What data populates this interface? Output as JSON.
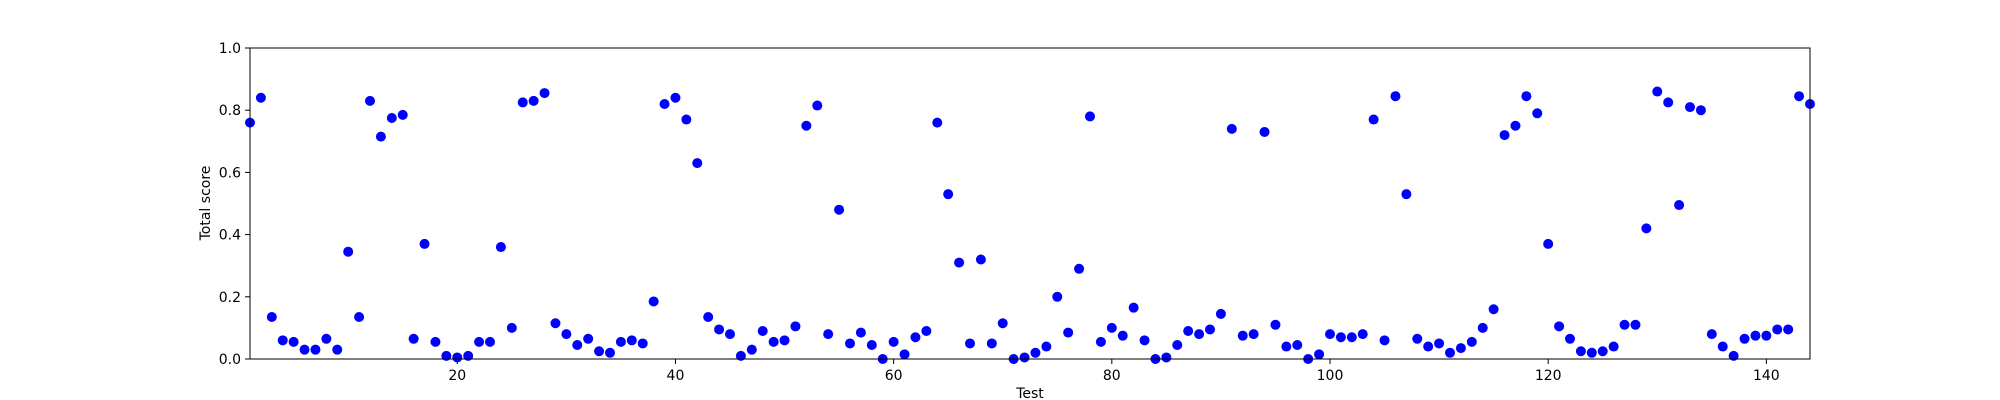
{
  "chart_data": {
    "type": "scatter",
    "title": "",
    "xlabel": "Test",
    "ylabel": "Total score",
    "xlim": [
      1,
      144
    ],
    "ylim": [
      0,
      1.0
    ],
    "x_ticks": [
      20,
      40,
      60,
      80,
      100,
      120,
      140
    ],
    "y_ticks": [
      0.0,
      0.2,
      0.4,
      0.6,
      0.8,
      1.0
    ],
    "y_tick_labels": [
      "0.0",
      "0.2",
      "0.4",
      "0.6",
      "0.8",
      "1.0"
    ],
    "grid": false,
    "marker_color": "#0000ff",
    "series": [
      {
        "points": [
          [
            1,
            0.76
          ],
          [
            2,
            0.84
          ],
          [
            3,
            0.135
          ],
          [
            4,
            0.06
          ],
          [
            5,
            0.055
          ],
          [
            6,
            0.03
          ],
          [
            7,
            0.03
          ],
          [
            8,
            0.065
          ],
          [
            9,
            0.03
          ],
          [
            10,
            0.345
          ],
          [
            11,
            0.135
          ],
          [
            12,
            0.83
          ],
          [
            13,
            0.715
          ],
          [
            14,
            0.775
          ],
          [
            15,
            0.785
          ],
          [
            16,
            0.065
          ],
          [
            17,
            0.37
          ],
          [
            18,
            0.055
          ],
          [
            19,
            0.01
          ],
          [
            20,
            0.005
          ],
          [
            21,
            0.01
          ],
          [
            22,
            0.055
          ],
          [
            23,
            0.055
          ],
          [
            24,
            0.36
          ],
          [
            25,
            0.1
          ],
          [
            26,
            0.825
          ],
          [
            27,
            0.83
          ],
          [
            28,
            0.855
          ],
          [
            29,
            0.115
          ],
          [
            30,
            0.08
          ],
          [
            31,
            0.045
          ],
          [
            32,
            0.065
          ],
          [
            33,
            0.025
          ],
          [
            34,
            0.02
          ],
          [
            35,
            0.055
          ],
          [
            36,
            0.06
          ],
          [
            37,
            0.05
          ],
          [
            38,
            0.185
          ],
          [
            39,
            0.82
          ],
          [
            40,
            0.84
          ],
          [
            41,
            0.77
          ],
          [
            42,
            0.63
          ],
          [
            43,
            0.135
          ],
          [
            44,
            0.095
          ],
          [
            45,
            0.08
          ],
          [
            46,
            0.01
          ],
          [
            47,
            0.03
          ],
          [
            48,
            0.09
          ],
          [
            49,
            0.055
          ],
          [
            50,
            0.06
          ],
          [
            51,
            0.105
          ],
          [
            52,
            0.75
          ],
          [
            53,
            0.815
          ],
          [
            54,
            0.08
          ],
          [
            55,
            0.48
          ],
          [
            56,
            0.05
          ],
          [
            57,
            0.085
          ],
          [
            58,
            0.045
          ],
          [
            59,
            0.0
          ],
          [
            60,
            0.055
          ],
          [
            61,
            0.015
          ],
          [
            62,
            0.07
          ],
          [
            63,
            0.09
          ],
          [
            64,
            0.76
          ],
          [
            65,
            0.53
          ],
          [
            66,
            0.31
          ],
          [
            67,
            0.05
          ],
          [
            68,
            0.32
          ],
          [
            69,
            0.05
          ],
          [
            70,
            0.115
          ],
          [
            71,
            0.0
          ],
          [
            72,
            0.005
          ],
          [
            73,
            0.02
          ],
          [
            74,
            0.04
          ],
          [
            75,
            0.2
          ],
          [
            76,
            0.085
          ],
          [
            77,
            0.29
          ],
          [
            78,
            0.78
          ],
          [
            79,
            0.055
          ],
          [
            80,
            0.1
          ],
          [
            81,
            0.075
          ],
          [
            82,
            0.165
          ],
          [
            83,
            0.06
          ],
          [
            84,
            0.0
          ],
          [
            85,
            0.005
          ],
          [
            86,
            0.045
          ],
          [
            87,
            0.09
          ],
          [
            88,
            0.08
          ],
          [
            89,
            0.095
          ],
          [
            90,
            0.145
          ],
          [
            91,
            0.74
          ],
          [
            92,
            0.075
          ],
          [
            93,
            0.08
          ],
          [
            94,
            0.73
          ],
          [
            95,
            0.11
          ],
          [
            96,
            0.04
          ],
          [
            97,
            0.045
          ],
          [
            98,
            0.0
          ],
          [
            99,
            0.015
          ],
          [
            100,
            0.08
          ],
          [
            101,
            0.07
          ],
          [
            102,
            0.07
          ],
          [
            103,
            0.08
          ],
          [
            104,
            0.77
          ],
          [
            105,
            0.06
          ],
          [
            106,
            0.845
          ],
          [
            107,
            0.53
          ],
          [
            108,
            0.065
          ],
          [
            109,
            0.04
          ],
          [
            110,
            0.05
          ],
          [
            111,
            0.02
          ],
          [
            112,
            0.035
          ],
          [
            113,
            0.055
          ],
          [
            114,
            0.1
          ],
          [
            115,
            0.16
          ],
          [
            116,
            0.72
          ],
          [
            117,
            0.75
          ],
          [
            118,
            0.845
          ],
          [
            119,
            0.79
          ],
          [
            120,
            0.37
          ],
          [
            121,
            0.105
          ],
          [
            122,
            0.065
          ],
          [
            123,
            0.025
          ],
          [
            124,
            0.02
          ],
          [
            125,
            0.025
          ],
          [
            126,
            0.04
          ],
          [
            127,
            0.11
          ],
          [
            128,
            0.11
          ],
          [
            129,
            0.42
          ],
          [
            130,
            0.86
          ],
          [
            131,
            0.825
          ],
          [
            132,
            0.495
          ],
          [
            133,
            0.81
          ],
          [
            134,
            0.8
          ],
          [
            135,
            0.08
          ],
          [
            136,
            0.04
          ],
          [
            137,
            0.01
          ],
          [
            138,
            0.065
          ],
          [
            139,
            0.075
          ],
          [
            140,
            0.075
          ],
          [
            141,
            0.095
          ],
          [
            142,
            0.095
          ],
          [
            143,
            0.845
          ],
          [
            144,
            0.82
          ]
        ]
      }
    ]
  }
}
